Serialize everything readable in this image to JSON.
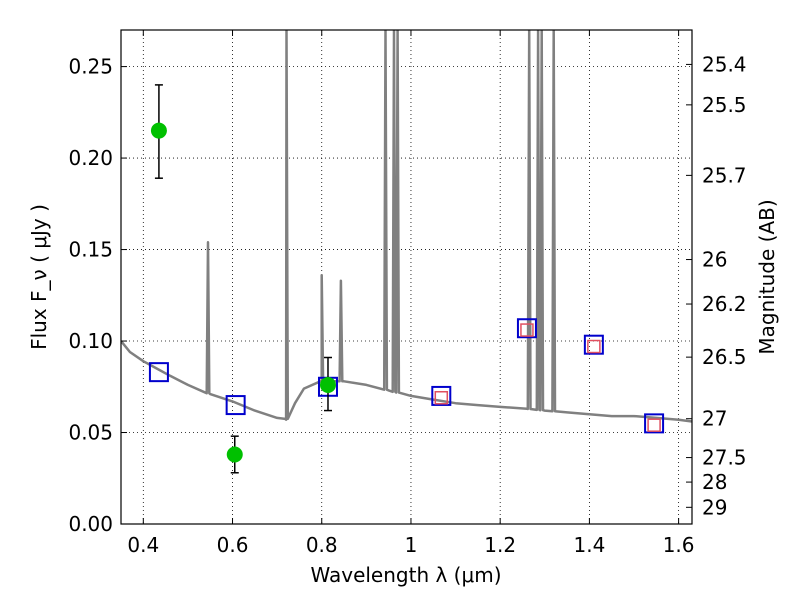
{
  "chart_data": {
    "type": "scatter",
    "xlabel": "Wavelength  λ (μm)",
    "ylabel": "Flux  F_ν  ( μJy )",
    "y2label": "Magnitude (AB)",
    "xlim": [
      0.35,
      1.63
    ],
    "ylim": [
      0.0,
      0.27
    ],
    "grid": true,
    "x_ticks": [
      "0.4",
      "0.6",
      "0.8",
      "1",
      "1.2",
      "1.4",
      "1.6"
    ],
    "y_ticks": [
      "0.00",
      "0.05",
      "0.10",
      "0.15",
      "0.20",
      "0.25"
    ],
    "y2_ticks": [
      "25.4",
      "25.5",
      "25.7",
      "26",
      "26.2",
      "26.5",
      "27",
      "27.5",
      "28",
      "29"
    ],
    "colors": {
      "template": "#808080",
      "observed": "#00c000",
      "model_blue": "#0000cc",
      "model_red": "#e05060",
      "errorbar": "#000000"
    },
    "series": [
      {
        "kind": "template-spectrum",
        "baseline": [
          [
            0.35,
            0.1
          ],
          [
            0.37,
            0.094
          ],
          [
            0.4,
            0.089
          ],
          [
            0.43,
            0.085
          ],
          [
            0.46,
            0.081
          ],
          [
            0.5,
            0.076
          ],
          [
            0.55,
            0.071
          ],
          [
            0.6,
            0.067
          ],
          [
            0.65,
            0.062
          ],
          [
            0.7,
            0.058
          ],
          [
            0.72,
            0.057
          ],
          [
            0.74,
            0.066
          ],
          [
            0.76,
            0.074
          ],
          [
            0.8,
            0.078
          ],
          [
            0.85,
            0.078
          ],
          [
            0.9,
            0.076
          ],
          [
            0.95,
            0.073
          ],
          [
            1.0,
            0.07
          ],
          [
            1.05,
            0.068
          ],
          [
            1.1,
            0.066
          ],
          [
            1.15,
            0.065
          ],
          [
            1.2,
            0.064
          ],
          [
            1.26,
            0.063
          ],
          [
            1.3,
            0.062
          ],
          [
            1.35,
            0.061
          ],
          [
            1.4,
            0.06
          ],
          [
            1.45,
            0.059
          ],
          [
            1.5,
            0.059
          ],
          [
            1.55,
            0.058
          ],
          [
            1.6,
            0.057
          ],
          [
            1.63,
            0.056
          ]
        ],
        "emission_lines": [
          [
            0.545,
            0.154
          ],
          [
            0.721,
            0.27
          ],
          [
            0.8,
            0.136
          ],
          [
            0.843,
            0.133
          ],
          [
            0.943,
            0.27
          ],
          [
            0.962,
            0.27
          ],
          [
            0.97,
            0.27
          ],
          [
            1.265,
            0.27
          ],
          [
            1.285,
            0.27
          ],
          [
            1.293,
            0.27
          ],
          [
            1.32,
            0.27
          ]
        ]
      },
      {
        "kind": "observed",
        "points": [
          {
            "x": 0.435,
            "y": 0.215,
            "err_low": 0.189,
            "err_high": 0.24
          },
          {
            "x": 0.605,
            "y": 0.038,
            "err_low": 0.028,
            "err_high": 0.048
          },
          {
            "x": 0.814,
            "y": 0.076,
            "err_low": 0.062,
            "err_high": 0.091
          }
        ]
      },
      {
        "kind": "model-blue-squares",
        "points": [
          {
            "x": 0.435,
            "y": 0.083
          },
          {
            "x": 0.607,
            "y": 0.065
          },
          {
            "x": 0.814,
            "y": 0.075
          },
          {
            "x": 1.068,
            "y": 0.07
          },
          {
            "x": 1.26,
            "y": 0.107
          },
          {
            "x": 1.41,
            "y": 0.098
          },
          {
            "x": 1.545,
            "y": 0.055
          }
        ]
      },
      {
        "kind": "model-red-squares",
        "points": [
          {
            "x": 1.068,
            "y": 0.069
          },
          {
            "x": 1.26,
            "y": 0.106
          },
          {
            "x": 1.41,
            "y": 0.097
          },
          {
            "x": 1.545,
            "y": 0.054
          }
        ]
      }
    ]
  }
}
